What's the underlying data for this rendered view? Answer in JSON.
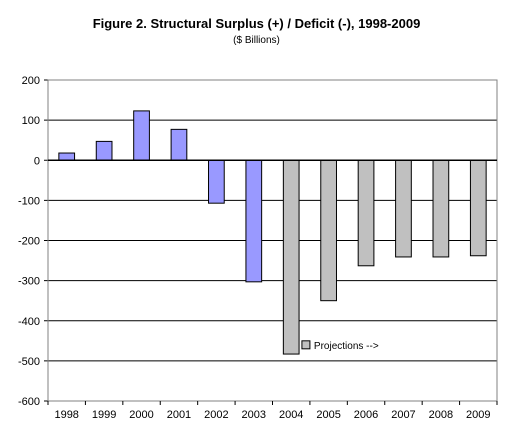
{
  "chart_data": {
    "type": "bar",
    "title": "Figure 2.  Structural Surplus (+) / Deficit (-), 1998-2009",
    "subtitle": "($ Billions)",
    "xlabel": "",
    "ylabel": "",
    "ylim": [
      -600,
      200
    ],
    "ytick_step": 100,
    "grid": true,
    "categories": [
      "1998",
      "1999",
      "2000",
      "2001",
      "2002",
      "2003",
      "2004",
      "2005",
      "2006",
      "2007",
      "2008",
      "2009"
    ],
    "values": [
      18,
      47,
      123,
      77,
      -107,
      -303,
      -483,
      -350,
      -263,
      -241,
      -241,
      -238
    ],
    "projection_start_index": 6,
    "colors": {
      "actual": "#9999ff",
      "projection": "#c0c0c0"
    },
    "annotation": "Projections -->"
  }
}
